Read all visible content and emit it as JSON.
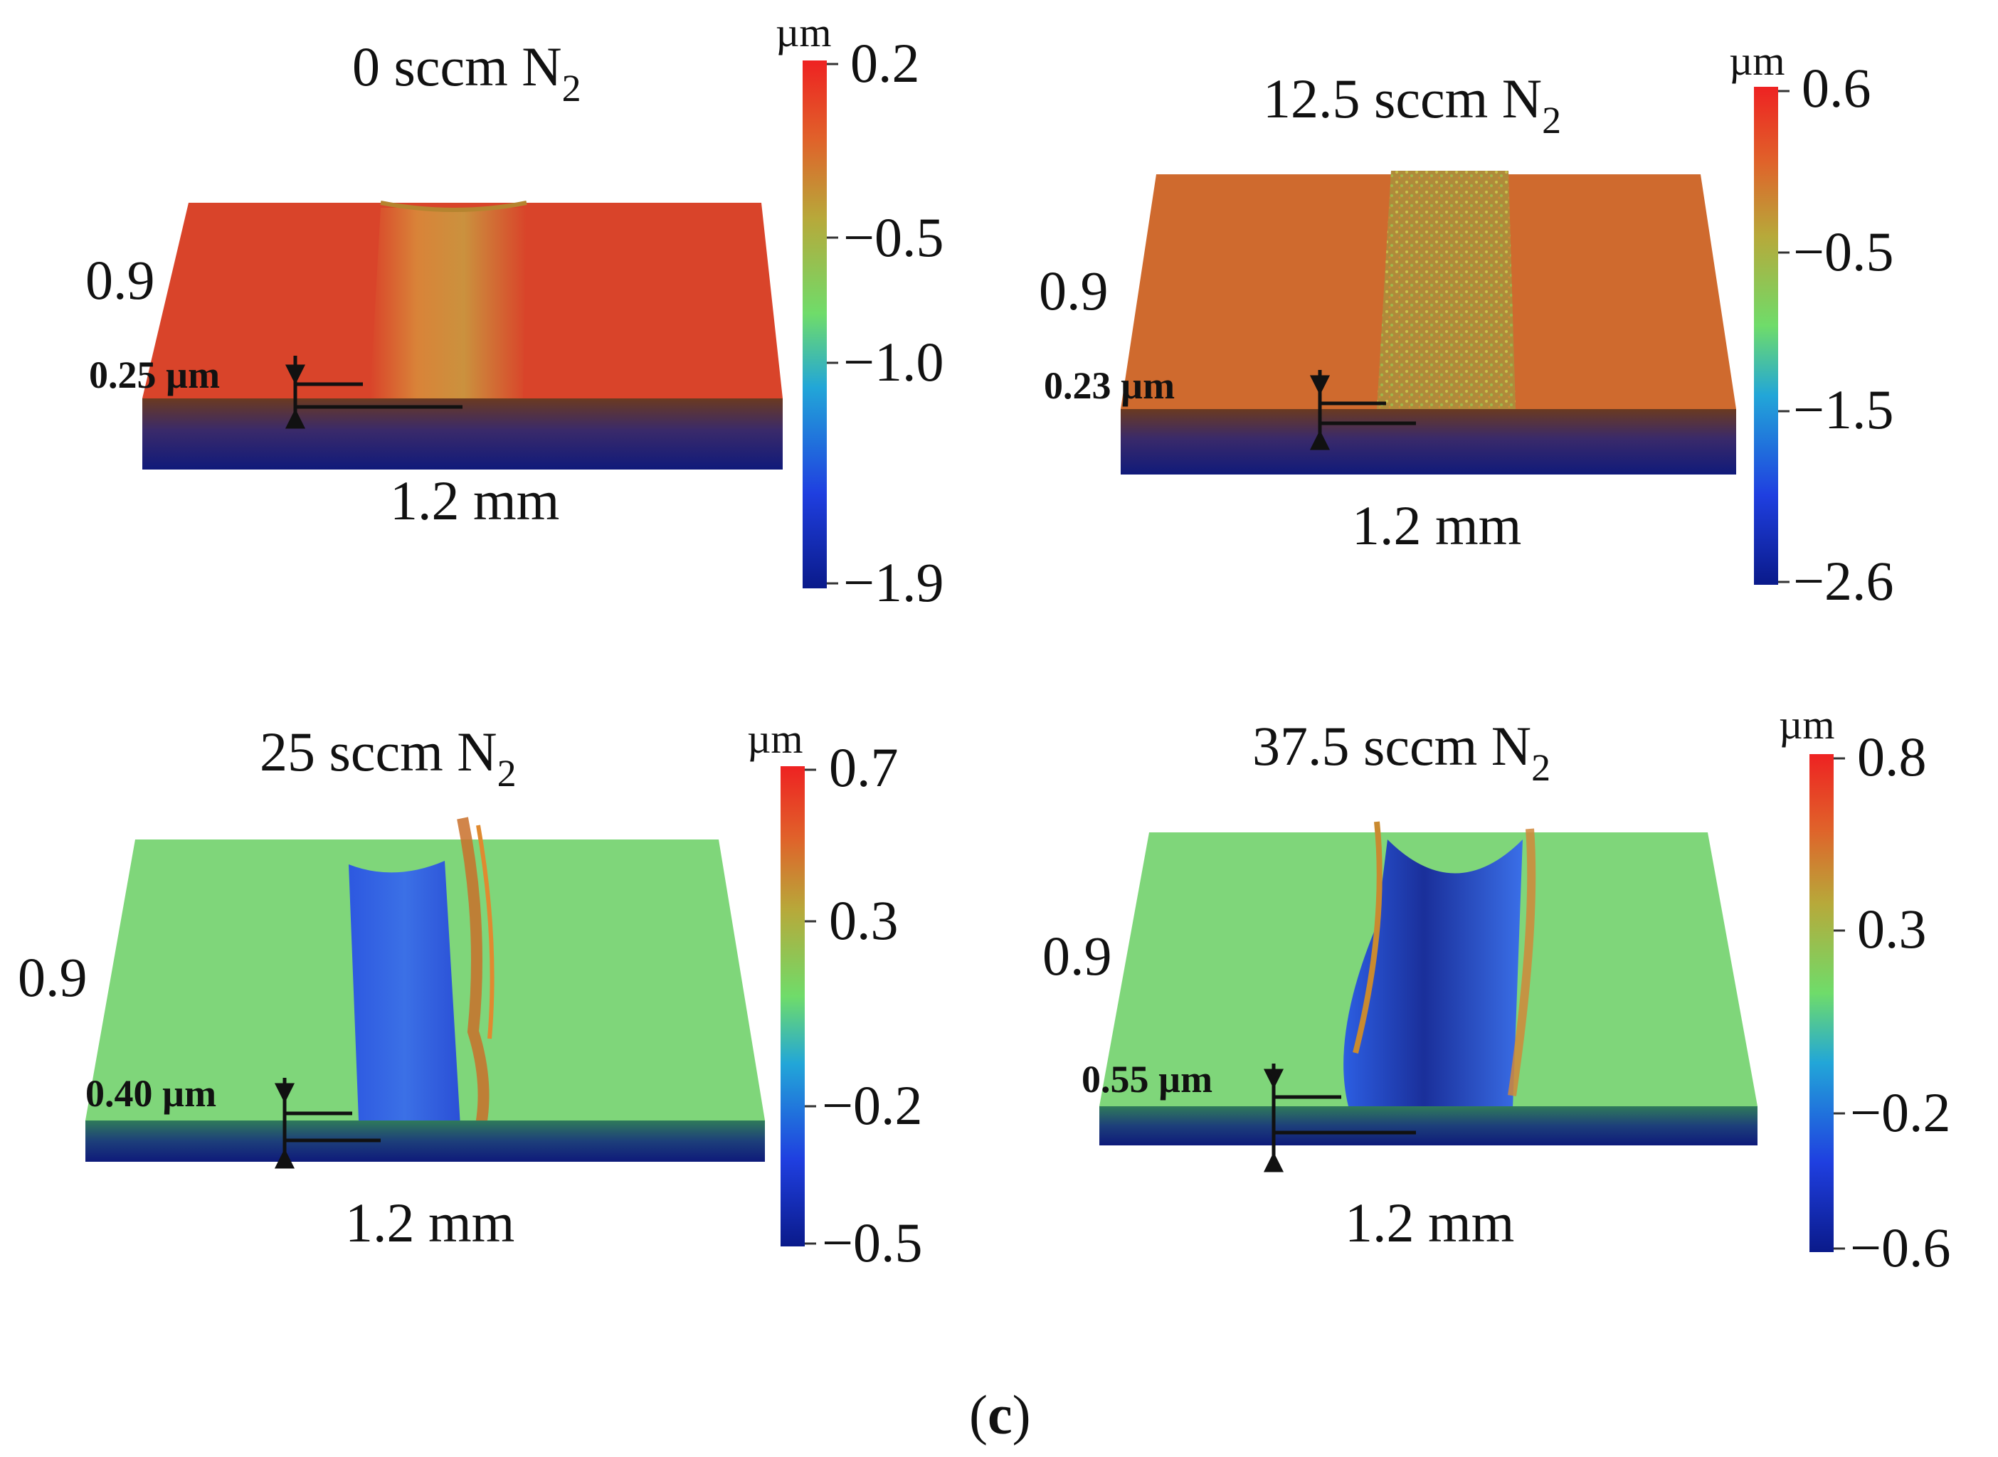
{
  "panels": [
    {
      "title_main": "0 sccm N",
      "title_sub": "2",
      "width_label": "1.2 mm",
      "depth_axis_label": "0.9",
      "track_depth_label": "0.25 µm",
      "colorbar": {
        "unit": "µm",
        "ticks": [
          "0.2",
          "−0.5",
          "−1.0",
          "−1.9"
        ]
      },
      "surface_color": "#d9442a",
      "track_color": "#d7843a",
      "track_style": "shallow"
    },
    {
      "title_main": "12.5 sccm N",
      "title_sub": "2",
      "width_label": "1.2 mm",
      "depth_axis_label": "0.9",
      "track_depth_label": "0.23 µm",
      "colorbar": {
        "unit": "µm",
        "ticks": [
          "0.6",
          "−0.5",
          "−1.5",
          "−2.6"
        ]
      },
      "surface_color": "#cf6a2e",
      "track_color": "#b89a3a",
      "track_style": "speckled"
    },
    {
      "title_main": "25 sccm N",
      "title_sub": "2",
      "width_label": "1.2 mm",
      "depth_axis_label": "0.9",
      "track_depth_label": "0.40 µm",
      "colorbar": {
        "unit": "µm",
        "ticks": [
          "0.7",
          "0.3",
          "−0.2",
          "−0.5"
        ]
      },
      "surface_color": "#7fd67a",
      "track_color": "#3a5fd6",
      "track_style": "groove"
    },
    {
      "title_main": "37.5 sccm N",
      "title_sub": "2",
      "width_label": "1.2 mm",
      "depth_axis_label": "0.9",
      "track_depth_label": "0.55 µm",
      "colorbar": {
        "unit": "µm",
        "ticks": [
          "0.8",
          "0.3",
          "−0.2",
          "−0.6"
        ]
      },
      "surface_color": "#7fd67a",
      "track_color": "#2c48c8",
      "track_style": "deep"
    }
  ],
  "caption": {
    "open": "(",
    "letter": "c",
    "close": ")"
  }
}
